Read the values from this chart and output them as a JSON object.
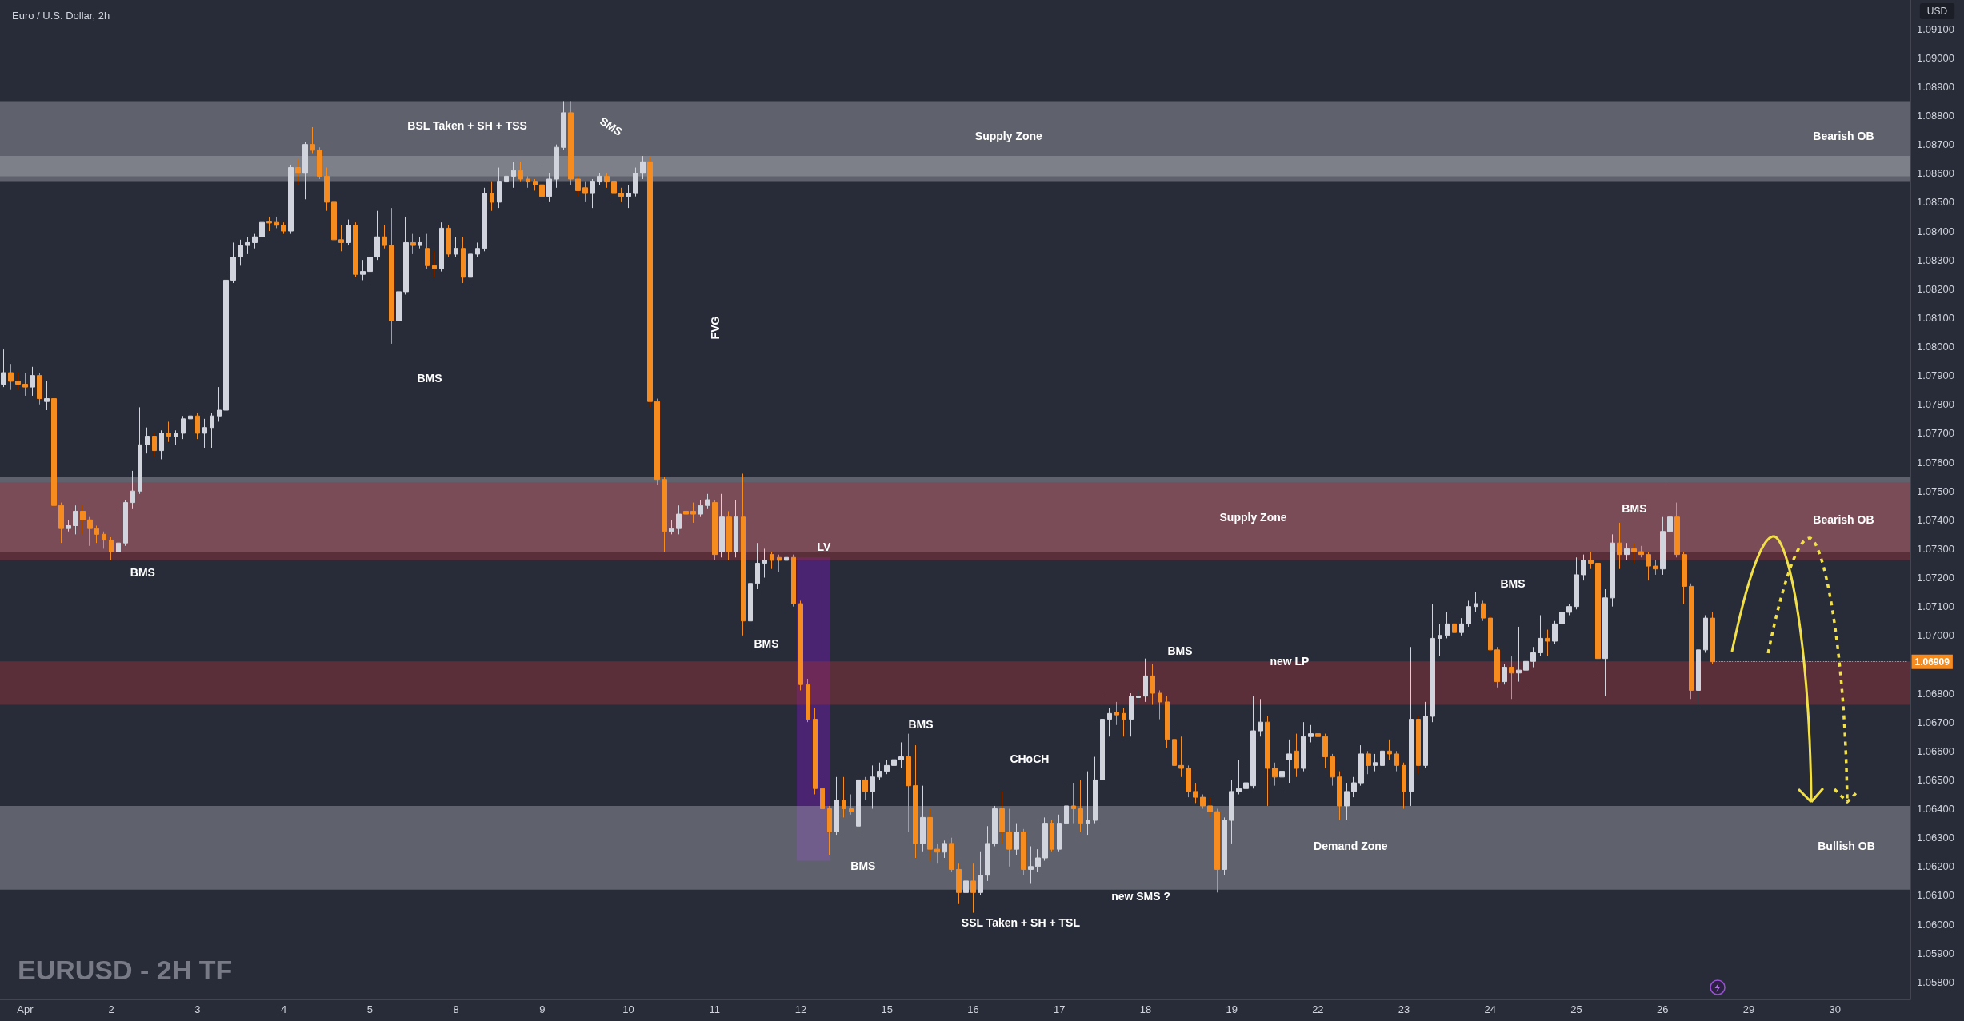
{
  "chart_data": {
    "type": "candlestick",
    "title": "Euro / U.S. Dollar, 2h",
    "ylabel": "USD",
    "categories": [
      null,
      null,
      null,
      "Apr",
      null,
      null,
      null,
      null,
      null,
      null,
      null,
      null,
      null,
      null,
      null,
      "2",
      null,
      null,
      null,
      null,
      null,
      null,
      null,
      null,
      null,
      null,
      null,
      "3",
      null,
      null,
      null,
      null,
      null,
      null,
      null,
      null,
      null,
      null,
      null,
      "4",
      null,
      null,
      null,
      null,
      null,
      null,
      null,
      null,
      null,
      null,
      null,
      "5",
      null,
      null,
      null,
      null,
      null,
      null,
      null,
      null,
      null,
      null,
      null,
      "8",
      null,
      null,
      null,
      null,
      null,
      null,
      null,
      null,
      null,
      null,
      null,
      "9",
      null,
      null,
      null,
      null,
      null,
      null,
      null,
      null,
      null,
      null,
      null,
      "10",
      null,
      null,
      null,
      null,
      null,
      null,
      null,
      null,
      null,
      null,
      null,
      "11",
      null,
      null,
      null,
      null,
      null,
      null,
      null,
      null,
      null,
      null,
      null,
      "12",
      null,
      null,
      null,
      null,
      null,
      null,
      null,
      null,
      null,
      null,
      null,
      "15",
      null,
      null,
      null,
      null,
      null,
      null,
      null,
      null,
      null,
      null,
      null,
      "16",
      null,
      null,
      null,
      null,
      null,
      null,
      null,
      null,
      null,
      null,
      null,
      "17",
      null,
      null,
      null,
      null,
      null,
      null,
      null,
      null,
      null,
      null,
      null,
      "18",
      null,
      null,
      null,
      null,
      null,
      null,
      null,
      null,
      null,
      null,
      null,
      "19",
      null,
      null,
      null,
      null,
      null,
      null,
      null,
      null,
      null,
      null,
      null,
      "22",
      null,
      null,
      null,
      null,
      null,
      null,
      null,
      null,
      null,
      null,
      null,
      "23",
      null,
      null,
      null,
      null,
      null,
      null,
      null,
      null,
      null,
      null,
      null,
      "24",
      null,
      null,
      null,
      null,
      null,
      null,
      null,
      null,
      null,
      null,
      null,
      "25",
      null,
      null,
      null,
      null,
      null,
      null,
      null,
      null,
      null,
      null,
      null,
      "26",
      null,
      null,
      null,
      null,
      null,
      null,
      null,
      null,
      null,
      null,
      null,
      "29",
      null,
      null,
      null,
      null,
      null,
      null,
      null,
      null,
      null,
      null,
      null,
      "30",
      null,
      null,
      null,
      null,
      null,
      null,
      null,
      null,
      null,
      null
    ],
    "ylim": [
      1.0574,
      1.092
    ],
    "yticks": [
      {
        "value": 1.058,
        "label": "1.05800"
      },
      {
        "value": 1.059,
        "label": "1.05900"
      },
      {
        "value": 1.06,
        "label": "1.06000"
      },
      {
        "value": 1.061,
        "label": "1.06100"
      },
      {
        "value": 1.062,
        "label": "1.06200"
      },
      {
        "value": 1.063,
        "label": "1.06300"
      },
      {
        "value": 1.064,
        "label": "1.06400"
      },
      {
        "value": 1.065,
        "label": "1.06500"
      },
      {
        "value": 1.066,
        "label": "1.06600"
      },
      {
        "value": 1.067,
        "label": "1.06700"
      },
      {
        "value": 1.068,
        "label": "1.06800"
      },
      {
        "value": 1.07,
        "label": "1.07000"
      },
      {
        "value": 1.071,
        "label": "1.07100"
      },
      {
        "value": 1.072,
        "label": "1.07200"
      },
      {
        "value": 1.073,
        "label": "1.07300"
      },
      {
        "value": 1.074,
        "label": "1.07400"
      },
      {
        "value": 1.075,
        "label": "1.07500"
      },
      {
        "value": 1.076,
        "label": "1.07600"
      },
      {
        "value": 1.077,
        "label": "1.07700"
      },
      {
        "value": 1.078,
        "label": "1.07800"
      },
      {
        "value": 1.079,
        "label": "1.07900"
      },
      {
        "value": 1.08,
        "label": "1.08000"
      },
      {
        "value": 1.081,
        "label": "1.08100"
      },
      {
        "value": 1.082,
        "label": "1.08200"
      },
      {
        "value": 1.083,
        "label": "1.08300"
      },
      {
        "value": 1.084,
        "label": "1.08400"
      },
      {
        "value": 1.085,
        "label": "1.08500"
      },
      {
        "value": 1.086,
        "label": "1.08600"
      },
      {
        "value": 1.087,
        "label": "1.08700"
      },
      {
        "value": 1.088,
        "label": "1.08800"
      },
      {
        "value": 1.089,
        "label": "1.08900"
      },
      {
        "value": 1.09,
        "label": "1.09000"
      },
      {
        "value": 1.091,
        "label": "1.09100"
      }
    ],
    "ohlc": [
      [
        1.0787,
        1.0799,
        1.0786,
        1.0791
      ],
      [
        1.0791,
        1.0794,
        1.0785,
        1.0788
      ],
      [
        1.0788,
        1.0791,
        1.0785,
        1.0787
      ],
      [
        1.0787,
        1.0791,
        1.0783,
        1.0786
      ],
      [
        1.0786,
        1.0793,
        1.0783,
        1.079
      ],
      [
        1.079,
        1.0791,
        1.078,
        1.0782
      ],
      [
        1.0781,
        1.0788,
        1.0778,
        1.0782
      ],
      [
        1.0782,
        1.0783,
        1.074,
        1.0745
      ],
      [
        1.0745,
        1.0746,
        1.0732,
        1.0737
      ],
      [
        1.0737,
        1.074,
        1.0736,
        1.0738
      ],
      [
        1.0738,
        1.0745,
        1.0735,
        1.0743
      ],
      [
        1.0743,
        1.0745,
        1.0735,
        1.074
      ],
      [
        1.074,
        1.0741,
        1.0731,
        1.0737
      ],
      [
        1.0737,
        1.0738,
        1.0732,
        1.0735
      ],
      [
        1.0735,
        1.0736,
        1.073,
        1.0733
      ],
      [
        1.0733,
        1.0734,
        1.0726,
        1.0729
      ],
      [
        1.0729,
        1.0743,
        1.0727,
        1.0732
      ],
      [
        1.0732,
        1.0747,
        1.0731,
        1.0746
      ],
      [
        1.0746,
        1.0757,
        1.0744,
        1.075
      ],
      [
        1.075,
        1.0779,
        1.0749,
        1.0766
      ],
      [
        1.0766,
        1.0772,
        1.0763,
        1.0769
      ],
      [
        1.0769,
        1.077,
        1.0762,
        1.0764
      ],
      [
        1.0764,
        1.0771,
        1.0761,
        1.077
      ],
      [
        1.077,
        1.0774,
        1.0767,
        1.0769
      ],
      [
        1.0769,
        1.0771,
        1.0766,
        1.077
      ],
      [
        1.077,
        1.0776,
        1.0768,
        1.0775
      ],
      [
        1.0775,
        1.078,
        1.0774,
        1.0776
      ],
      [
        1.0776,
        1.0777,
        1.0768,
        1.077
      ],
      [
        1.077,
        1.0775,
        1.0765,
        1.0772
      ],
      [
        1.0772,
        1.0777,
        1.0765,
        1.0776
      ],
      [
        1.0776,
        1.0786,
        1.0774,
        1.0778
      ],
      [
        1.0778,
        1.0825,
        1.0777,
        1.0823
      ],
      [
        1.0823,
        1.0836,
        1.0822,
        1.0831
      ],
      [
        1.0831,
        1.0837,
        1.0828,
        1.0835
      ],
      [
        1.0835,
        1.0838,
        1.0832,
        1.0836
      ],
      [
        1.0836,
        1.0839,
        1.0834,
        1.0838
      ],
      [
        1.0838,
        1.0844,
        1.0837,
        1.0843
      ],
      [
        1.08432,
        1.0845,
        1.084,
        1.08428
      ],
      [
        1.0843,
        1.0845,
        1.0841,
        1.0842
      ],
      [
        1.0842,
        1.0843,
        1.0839,
        1.084
      ],
      [
        1.084,
        1.0863,
        1.0839,
        1.0862
      ],
      [
        1.0862,
        1.0865,
        1.0856,
        1.086
      ],
      [
        1.086,
        1.0871,
        1.0851,
        1.087
      ],
      [
        1.087,
        1.0876,
        1.0867,
        1.0868
      ],
      [
        1.0868,
        1.0869,
        1.0858,
        1.0859
      ],
      [
        1.0859,
        1.0862,
        1.0847,
        1.085
      ],
      [
        1.085,
        1.0851,
        1.0832,
        1.0837
      ],
      [
        1.0837,
        1.0842,
        1.0833,
        1.0836
      ],
      [
        1.0836,
        1.0844,
        1.0835,
        1.0842
      ],
      [
        1.0842,
        1.0843,
        1.0824,
        1.0825
      ],
      [
        1.0825,
        1.083,
        1.0823,
        1.0826
      ],
      [
        1.0826,
        1.0833,
        1.0822,
        1.0831
      ],
      [
        1.0831,
        1.0847,
        1.083,
        1.0838
      ],
      [
        1.0838,
        1.0842,
        1.0834,
        1.0835
      ],
      [
        1.0835,
        1.0848,
        1.0801,
        1.0809
      ],
      [
        1.0809,
        1.0826,
        1.0808,
        1.0819
      ],
      [
        1.0819,
        1.0845,
        1.0818,
        1.0836
      ],
      [
        1.0836,
        1.0839,
        1.0832,
        1.0835
      ],
      [
        1.0835,
        1.0838,
        1.0834,
        1.0836
      ],
      [
        1.0834,
        1.0839,
        1.0827,
        1.0828
      ],
      [
        1.0828,
        1.0833,
        1.0824,
        1.0827
      ],
      [
        1.0827,
        1.0843,
        1.0826,
        1.0841
      ],
      [
        1.0841,
        1.0842,
        1.0831,
        1.0832
      ],
      [
        1.0832,
        1.0838,
        1.0831,
        1.0834
      ],
      [
        1.0834,
        1.0838,
        1.0822,
        1.0824
      ],
      [
        1.0824,
        1.0833,
        1.0822,
        1.0832
      ],
      [
        1.0832,
        1.0836,
        1.0831,
        1.0834
      ],
      [
        1.0834,
        1.0855,
        1.0833,
        1.0853
      ],
      [
        1.0853,
        1.0857,
        1.0847,
        1.085
      ],
      [
        1.085,
        1.0862,
        1.0848,
        1.0857
      ],
      [
        1.0857,
        1.086,
        1.0856,
        1.0859
      ],
      [
        1.0859,
        1.0864,
        1.0855,
        1.0861
      ],
      [
        1.0861,
        1.0864,
        1.0857,
        1.0858
      ],
      [
        1.0858,
        1.0859,
        1.0855,
        1.0857
      ],
      [
        1.0857,
        1.0858,
        1.0854,
        1.0856
      ],
      [
        1.0856,
        1.0863,
        1.085,
        1.0852
      ],
      [
        1.0852,
        1.086,
        1.085,
        1.0858
      ],
      [
        1.0858,
        1.087,
        1.0855,
        1.0869
      ],
      [
        1.0869,
        1.0885,
        1.0868,
        1.0881
      ],
      [
        1.0881,
        1.0885,
        1.0856,
        1.0858
      ],
      [
        1.0858,
        1.0859,
        1.0852,
        1.0854
      ],
      [
        1.0855,
        1.0857,
        1.085,
        1.0853
      ],
      [
        1.0853,
        1.0858,
        1.0848,
        1.0857
      ],
      [
        1.0857,
        1.086,
        1.0856,
        1.0859
      ],
      [
        1.0859,
        1.086,
        1.0855,
        1.0857
      ],
      [
        1.0857,
        1.0858,
        1.0851,
        1.0853
      ],
      [
        1.0853,
        1.0855,
        1.085,
        1.0852
      ],
      [
        1.0852,
        1.0856,
        1.0848,
        1.0853
      ],
      [
        1.0853,
        1.0862,
        1.0852,
        1.086
      ],
      [
        1.086,
        1.0866,
        1.0858,
        1.0864
      ],
      [
        1.0864,
        1.0866,
        1.0779,
        1.0781
      ],
      [
        1.0781,
        1.0782,
        1.0752,
        1.0754
      ],
      [
        1.0754,
        1.0755,
        1.0729,
        1.0736
      ],
      [
        1.0736,
        1.074,
        1.0735,
        1.0737
      ],
      [
        1.0737,
        1.0745,
        1.0735,
        1.0742
      ],
      [
        1.0743,
        1.0744,
        1.074,
        1.0742
      ],
      [
        1.0743,
        1.0746,
        1.0739,
        1.0742
      ],
      [
        1.0742,
        1.0747,
        1.0741,
        1.0745
      ],
      [
        1.0745,
        1.0749,
        1.0744,
        1.0747
      ],
      [
        1.0746,
        1.0747,
        1.0726,
        1.0728
      ],
      [
        1.0729,
        1.0749,
        1.0727,
        1.0741
      ],
      [
        1.0741,
        1.0743,
        1.0726,
        1.0729
      ],
      [
        1.0729,
        1.0747,
        1.0727,
        1.0741
      ],
      [
        1.0741,
        1.0756,
        1.07,
        1.0705
      ],
      [
        1.0705,
        1.0724,
        1.0702,
        1.0718
      ],
      [
        1.0718,
        1.0732,
        1.0716,
        1.0725
      ],
      [
        1.0725,
        1.073,
        1.072,
        1.0726
      ],
      [
        1.0728,
        1.0729,
        1.0723,
        1.0726
      ],
      [
        1.0727,
        1.0728,
        1.0722,
        1.0726
      ],
      [
        1.0726,
        1.0728,
        1.0724,
        1.0727
      ],
      [
        1.0727,
        1.0728,
        1.071,
        1.0711
      ],
      [
        1.0711,
        1.0712,
        1.0681,
        1.0683
      ],
      [
        1.0683,
        1.0685,
        1.067,
        1.0671
      ],
      [
        1.0671,
        1.0675,
        1.0645,
        1.0647
      ],
      [
        1.0647,
        1.065,
        1.0636,
        1.064
      ],
      [
        1.064,
        1.0641,
        1.0624,
        1.0632
      ],
      [
        1.0632,
        1.0651,
        1.0631,
        1.0643
      ],
      [
        1.0643,
        1.0651,
        1.0637,
        1.064
      ],
      [
        1.064,
        1.0645,
        1.0638,
        1.0639
      ],
      [
        1.0634,
        1.0652,
        1.0631,
        1.065
      ],
      [
        1.065,
        1.0651,
        1.0643,
        1.0646
      ],
      [
        1.0646,
        1.0655,
        1.064,
        1.0651
      ],
      [
        1.0651,
        1.0656,
        1.065,
        1.0653
      ],
      [
        1.0653,
        1.0657,
        1.0652,
        1.0655
      ],
      [
        1.0655,
        1.0662,
        1.0651,
        1.0657
      ],
      [
        1.0657,
        1.0663,
        1.0654,
        1.0658
      ],
      [
        1.0658,
        1.0666,
        1.0632,
        1.0648
      ],
      [
        1.0648,
        1.0662,
        1.0623,
        1.0628
      ],
      [
        1.0628,
        1.0648,
        1.0625,
        1.0637
      ],
      [
        1.0637,
        1.064,
        1.0622,
        1.0626
      ],
      [
        1.0626,
        1.0628,
        1.0621,
        1.0625
      ],
      [
        1.0625,
        1.0629,
        1.0623,
        1.0628
      ],
      [
        1.0628,
        1.063,
        1.0618,
        1.0619
      ],
      [
        1.0619,
        1.0621,
        1.0607,
        1.0611
      ],
      [
        1.0611,
        1.0616,
        1.0608,
        1.0615
      ],
      [
        1.0615,
        1.0621,
        1.0604,
        1.0611
      ],
      [
        1.0611,
        1.0625,
        1.061,
        1.0617
      ],
      [
        1.0617,
        1.0634,
        1.0615,
        1.0628
      ],
      [
        1.0628,
        1.0641,
        1.0627,
        1.064
      ],
      [
        1.064,
        1.0646,
        1.0628,
        1.0632
      ],
      [
        1.0632,
        1.064,
        1.062,
        1.0626
      ],
      [
        1.0626,
        1.0635,
        1.0624,
        1.0632
      ],
      [
        1.0632,
        1.0633,
        1.0617,
        1.0619
      ],
      [
        1.0619,
        1.0627,
        1.0614,
        1.062
      ],
      [
        1.062,
        1.0626,
        1.0618,
        1.0623
      ],
      [
        1.0623,
        1.0637,
        1.0622,
        1.0635
      ],
      [
        1.0635,
        1.0636,
        1.0625,
        1.0626
      ],
      [
        1.0626,
        1.0638,
        1.0625,
        1.0635
      ],
      [
        1.0635,
        1.0649,
        1.0634,
        1.0641
      ],
      [
        1.0641,
        1.0649,
        1.0635,
        1.064
      ],
      [
        1.064,
        1.065,
        1.0632,
        1.0635
      ],
      [
        1.0635,
        1.0653,
        1.0631,
        1.0636
      ],
      [
        1.0636,
        1.0658,
        1.0635,
        1.065
      ],
      [
        1.065,
        1.068,
        1.0649,
        1.0671
      ],
      [
        1.0671,
        1.0675,
        1.0665,
        1.0673
      ],
      [
        1.06735,
        1.0677,
        1.0669,
        1.06725
      ],
      [
        1.0673,
        1.0675,
        1.0665,
        1.0671
      ],
      [
        1.0671,
        1.068,
        1.0665,
        1.0679
      ],
      [
        1.06785,
        1.0681,
        1.0676,
        1.0679
      ],
      [
        1.0679,
        1.0692,
        1.0677,
        1.0686
      ],
      [
        1.0686,
        1.069,
        1.0676,
        1.068
      ],
      [
        1.068,
        1.0681,
        1.0671,
        1.0677
      ],
      [
        1.0677,
        1.0679,
        1.0661,
        1.0664
      ],
      [
        1.0664,
        1.0669,
        1.0648,
        1.0655
      ],
      [
        1.0655,
        1.0665,
        1.0651,
        1.0654
      ],
      [
        1.0654,
        1.0655,
        1.0644,
        1.0646
      ],
      [
        1.0646,
        1.0649,
        1.0642,
        1.0644
      ],
      [
        1.0644,
        1.0645,
        1.064,
        1.0641
      ],
      [
        1.0641,
        1.0644,
        1.0637,
        1.0639
      ],
      [
        1.0639,
        1.064,
        1.0611,
        1.0619
      ],
      [
        1.0619,
        1.0637,
        1.0617,
        1.0636
      ],
      [
        1.0636,
        1.065,
        1.0628,
        1.0646
      ],
      [
        1.0646,
        1.0657,
        1.0645,
        1.0647
      ],
      [
        1.0647,
        1.0655,
        1.0646,
        1.0649
      ],
      [
        1.0648,
        1.0679,
        1.0647,
        1.0667
      ],
      [
        1.0667,
        1.0678,
        1.0665,
        1.067
      ],
      [
        1.067,
        1.0672,
        1.0641,
        1.0654
      ],
      [
        1.0654,
        1.0656,
        1.0648,
        1.0651
      ],
      [
        1.0651,
        1.0658,
        1.0647,
        1.0653
      ],
      [
        1.0657,
        1.0664,
        1.0649,
        1.0659
      ],
      [
        1.066,
        1.0666,
        1.0651,
        1.0654
      ],
      [
        1.0654,
        1.067,
        1.0653,
        1.0665
      ],
      [
        1.0665,
        1.0669,
        1.0663,
        1.0666
      ],
      [
        1.0666,
        1.067,
        1.0661,
        1.0665
      ],
      [
        1.0665,
        1.0666,
        1.0654,
        1.0658
      ],
      [
        1.0658,
        1.0659,
        1.0648,
        1.0651
      ],
      [
        1.0651,
        1.0653,
        1.0636,
        1.0641
      ],
      [
        1.0641,
        1.0649,
        1.0636,
        1.0646
      ],
      [
        1.0646,
        1.0651,
        1.0644,
        1.0649
      ],
      [
        1.0649,
        1.0662,
        1.0648,
        1.0659
      ],
      [
        1.0659,
        1.066,
        1.0652,
        1.0655
      ],
      [
        1.0655,
        1.0659,
        1.0653,
        1.0656
      ],
      [
        1.0655,
        1.0662,
        1.0654,
        1.066
      ],
      [
        1.066,
        1.0664,
        1.0657,
        1.0659
      ],
      [
        1.0659,
        1.066,
        1.0653,
        1.0655
      ],
      [
        1.0655,
        1.0656,
        1.064,
        1.0646
      ],
      [
        1.0646,
        1.0696,
        1.0641,
        1.0671
      ],
      [
        1.0671,
        1.0672,
        1.0652,
        1.0655
      ],
      [
        1.0655,
        1.0677,
        1.0654,
        1.0672
      ],
      [
        1.0672,
        1.0711,
        1.067,
        1.0699
      ],
      [
        1.0699,
        1.0704,
        1.0693,
        1.07
      ],
      [
        1.07,
        1.0708,
        1.0699,
        1.0704
      ],
      [
        1.0704,
        1.0706,
        1.0699,
        1.0701
      ],
      [
        1.0701,
        1.0706,
        1.07,
        1.0704
      ],
      [
        1.0704,
        1.0712,
        1.0703,
        1.071
      ],
      [
        1.071,
        1.0715,
        1.0708,
        1.0711
      ],
      [
        1.0711,
        1.0712,
        1.0705,
        1.0706
      ],
      [
        1.0706,
        1.0707,
        1.0694,
        1.0695
      ],
      [
        1.0695,
        1.0696,
        1.0682,
        1.0684
      ],
      [
        1.0684,
        1.069,
        1.0683,
        1.0689
      ],
      [
        1.0689,
        1.0693,
        1.0678,
        1.0687
      ],
      [
        1.0687,
        1.0703,
        1.0684,
        1.0688
      ],
      [
        1.0688,
        1.0693,
        1.0682,
        1.0691
      ],
      [
        1.0691,
        1.0696,
        1.0689,
        1.0694
      ],
      [
        1.0694,
        1.0707,
        1.0693,
        1.0699
      ],
      [
        1.0699,
        1.0702,
        1.0693,
        1.0698
      ],
      [
        1.0698,
        1.0705,
        1.0697,
        1.0704
      ],
      [
        1.0704,
        1.0709,
        1.0703,
        1.0708
      ],
      [
        1.0708,
        1.0711,
        1.0707,
        1.071
      ],
      [
        1.071,
        1.0727,
        1.0709,
        1.0721
      ],
      [
        1.0721,
        1.0728,
        1.0719,
        1.0726
      ],
      [
        1.0726,
        1.0729,
        1.0723,
        1.0725
      ],
      [
        1.0725,
        1.0733,
        1.0686,
        1.0692
      ],
      [
        1.0692,
        1.0716,
        1.0679,
        1.0713
      ],
      [
        1.0713,
        1.0735,
        1.071,
        1.0732
      ],
      [
        1.0732,
        1.0739,
        1.0723,
        1.0728
      ],
      [
        1.0728,
        1.0732,
        1.0726,
        1.073
      ],
      [
        1.073,
        1.0732,
        1.0725,
        1.0729
      ],
      [
        1.0729,
        1.0731,
        1.0727,
        1.0728
      ],
      [
        1.0728,
        1.0729,
        1.0719,
        1.0724
      ],
      [
        1.0724,
        1.0726,
        1.0721,
        1.0723
      ],
      [
        1.0723,
        1.0741,
        1.0721,
        1.0736
      ],
      [
        1.0736,
        1.0753,
        1.0734,
        1.0741
      ],
      [
        1.0741,
        1.0746,
        1.0727,
        1.0728
      ],
      [
        1.0728,
        1.0729,
        1.0711,
        1.0717
      ],
      [
        1.0717,
        1.0718,
        1.0678,
        1.0681
      ],
      [
        1.0681,
        1.0697,
        1.0675,
        1.0695
      ],
      [
        1.0695,
        1.0707,
        1.0694,
        1.0706
      ],
      [
        1.0706,
        1.0708,
        1.069,
        1.06909
      ],
      null,
      null,
      null,
      null,
      null,
      null,
      null,
      null,
      null,
      null,
      null,
      null,
      null,
      null,
      null,
      null,
      null,
      null,
      null,
      null,
      null,
      null,
      null,
      null,
      null,
      null,
      null
    ],
    "colors": [
      "#d1d4dc",
      "#f68b1f",
      "#f68b1f",
      "#f68b1f",
      "#d1d4dc",
      "#f68b1f",
      "#d1d4dc",
      "#f68b1f",
      "#f68b1f",
      "#d1d4dc",
      "#d1d4dc",
      "#f68b1f",
      "#f68b1f",
      "#f68b1f",
      "#f68b1f",
      "#f68b1f",
      "#d1d4dc",
      "#d1d4dc",
      "#d1d4dc",
      "#d1d4dc",
      "#d1d4dc",
      "#f68b1f",
      "#d1d4dc",
      "#f68b1f",
      "#d1d4dc",
      "#d1d4dc",
      "#d1d4dc",
      "#f68b1f",
      "#d1d4dc",
      "#d1d4dc",
      "#d1d4dc",
      "#d1d4dc",
      "#d1d4dc",
      "#d1d4dc",
      "#d1d4dc",
      "#d1d4dc",
      "#d1d4dc",
      "#f68b1f",
      "#f68b1f",
      "#f68b1f",
      "#d1d4dc",
      "#f68b1f",
      "#d1d4dc",
      "#f68b1f",
      "#f68b1f",
      "#f68b1f",
      "#f68b1f",
      "#f68b1f",
      "#d1d4dc",
      "#f68b1f",
      "#d1d4dc",
      "#d1d4dc",
      "#d1d4dc",
      "#f68b1f",
      "#f68b1f",
      "#d1d4dc",
      "#d1d4dc",
      "#f68b1f",
      "#d1d4dc",
      "#f68b1f",
      "#f68b1f",
      "#d1d4dc",
      "#f68b1f",
      "#d1d4dc",
      "#f68b1f",
      "#d1d4dc",
      "#d1d4dc",
      "#d1d4dc",
      "#f68b1f",
      "#d1d4dc",
      "#d1d4dc",
      "#d1d4dc",
      "#f68b1f",
      "#f68b1f",
      "#f68b1f",
      "#f68b1f",
      "#d1d4dc",
      "#d1d4dc",
      "#d1d4dc",
      "#f68b1f",
      "#f68b1f",
      "#f68b1f",
      "#d1d4dc",
      "#d1d4dc",
      "#f68b1f",
      "#f68b1f",
      "#f68b1f",
      "#d1d4dc",
      "#d1d4dc",
      "#d1d4dc",
      "#f68b1f",
      "#f68b1f",
      "#f68b1f",
      "#d1d4dc",
      "#d1d4dc",
      "#f68b1f",
      "#f68b1f",
      "#d1d4dc",
      "#d1d4dc",
      "#f68b1f",
      "#d1d4dc",
      "#f68b1f",
      "#d1d4dc",
      "#f68b1f",
      "#d1d4dc",
      "#d1d4dc",
      "#d1d4dc",
      "#f68b1f",
      "#f68b1f",
      "#d1d4dc",
      "#f68b1f",
      "#f68b1f",
      "#f68b1f",
      "#f68b1f",
      "#f68b1f",
      "#f68b1f",
      "#d1d4dc",
      "#f68b1f",
      "#f68b1f",
      "#d1d4dc",
      "#f68b1f",
      "#d1d4dc",
      "#d1d4dc",
      "#d1d4dc",
      "#d1d4dc",
      "#d1d4dc",
      "#f68b1f",
      "#f68b1f",
      "#d1d4dc",
      "#f68b1f",
      "#f68b1f",
      "#d1d4dc",
      "#f68b1f",
      "#f68b1f",
      "#d1d4dc",
      "#f68b1f",
      "#d1d4dc",
      "#d1d4dc",
      "#d1d4dc",
      "#f68b1f",
      "#f68b1f",
      "#d1d4dc",
      "#f68b1f",
      "#d1d4dc",
      "#d1d4dc",
      "#d1d4dc",
      "#f68b1f",
      "#d1d4dc",
      "#d1d4dc",
      "#f68b1f",
      "#f68b1f",
      "#d1d4dc",
      "#d1d4dc",
      "#d1d4dc",
      "#d1d4dc",
      "#f68b1f",
      "#f68b1f",
      "#d1d4dc",
      "#d1d4dc",
      "#d1d4dc",
      "#f68b1f",
      "#f68b1f",
      "#f68b1f",
      "#f68b1f",
      "#f68b1f",
      "#f68b1f",
      "#f68b1f",
      "#f68b1f",
      "#f68b1f",
      "#f68b1f",
      "#d1d4dc",
      "#d1d4dc",
      "#d1d4dc",
      "#d1d4dc",
      "#d1d4dc",
      "#d1d4dc",
      "#f68b1f",
      "#f68b1f",
      "#d1d4dc",
      "#d1d4dc",
      "#f68b1f",
      "#d1d4dc",
      "#d1d4dc",
      "#f68b1f",
      "#f68b1f",
      "#f68b1f",
      "#f68b1f",
      "#d1d4dc",
      "#d1d4dc",
      "#d1d4dc",
      "#f68b1f",
      "#d1d4dc",
      "#d1d4dc",
      "#f68b1f",
      "#f68b1f",
      "#f68b1f",
      "#d1d4dc",
      "#f68b1f",
      "#d1d4dc",
      "#d1d4dc",
      "#d1d4dc",
      "#d1d4dc",
      "#f68b1f",
      "#d1d4dc",
      "#d1d4dc",
      "#d1d4dc",
      "#f68b1f",
      "#f68b1f",
      "#f68b1f",
      "#d1d4dc",
      "#f68b1f",
      "#d1d4dc",
      "#d1d4dc",
      "#d1d4dc",
      "#d1d4dc",
      "#f68b1f",
      "#d1d4dc",
      "#d1d4dc",
      "#d1d4dc",
      "#d1d4dc",
      "#d1d4dc",
      "#f68b1f",
      "#f68b1f",
      "#d1d4dc",
      "#d1d4dc",
      "#f68b1f",
      "#d1d4dc",
      "#f68b1f",
      "#f68b1f",
      "#f68b1f",
      "#f68b1f",
      "#d1d4dc",
      "#d1d4dc",
      "#f68b1f",
      "#f68b1f",
      "#f68b1f",
      "#d1d4dc",
      "#d1d4dc",
      "#f68b1f",
      null,
      null,
      null,
      null,
      null,
      null,
      null,
      null,
      null,
      null,
      null,
      null,
      null,
      null,
      null,
      null,
      null,
      null,
      null,
      null,
      null,
      null,
      null,
      null,
      null,
      null,
      null
    ],
    "bands": [
      {
        "axis": "y",
        "from": 1.0857,
        "to": 1.0885,
        "label": "Supply Zone",
        "color": "#a2a4ae"
      },
      {
        "axis": "y",
        "from": 1.0859,
        "to": 1.0866,
        "label": "Bearish OB",
        "color": "#a2a4ae"
      },
      {
        "axis": "y",
        "from": 1.0729,
        "to": 1.0755,
        "label": "Supply Zone",
        "color": "#a2a4ae"
      },
      {
        "axis": "y",
        "from": 1.0726,
        "to": 1.0753,
        "label": "Bearish OB",
        "color": "#99333e"
      },
      {
        "axis": "y",
        "from": 1.0676,
        "to": 1.0691,
        "label": "new LP",
        "color": "#99333e"
      },
      {
        "axis": "y",
        "from": 1.0612,
        "to": 1.0641,
        "label": "Demand Zone",
        "color": "#a2a4ae"
      }
    ],
    "ref_lines": [
      {
        "axis": "y",
        "value": 1.06909,
        "label": "1.06909",
        "color": "#f68b1f",
        "line_style": "dotted"
      }
    ],
    "annotations": [
      "BSL Taken + SH + TSS",
      "SMS",
      "FVG",
      "BMS",
      "BMS",
      "BMS",
      "BMS",
      "BMS",
      "CHoCH",
      "SSL Taken + SH + TSL",
      "new SMS ?",
      "BMS",
      "BMS",
      "BMS",
      "Bullish OB",
      "EURUSD - 2H TF",
      "LV"
    ]
  }
}
